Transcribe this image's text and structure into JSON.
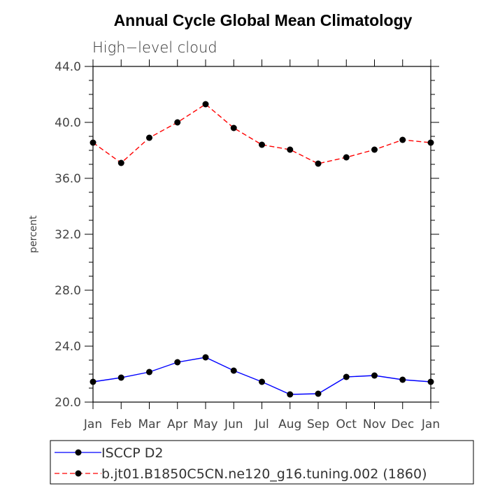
{
  "chart_data": {
    "type": "line",
    "title": "Annual Cycle Global Mean Climatology",
    "subtitle": "High−level cloud",
    "xlabel": "",
    "ylabel": "percent",
    "ylim": [
      20.0,
      44.0
    ],
    "yticks": [
      "20.0",
      "24.0",
      "28.0",
      "32.0",
      "36.0",
      "40.0",
      "44.0"
    ],
    "categories": [
      "Jan",
      "Feb",
      "Mar",
      "Apr",
      "May",
      "Jun",
      "Jul",
      "Aug",
      "Sep",
      "Oct",
      "Nov",
      "Dec",
      "Jan"
    ],
    "series": [
      {
        "name": "ISCCP D2",
        "color": "#0000ff",
        "dash": "solid",
        "values": [
          21.45,
          21.75,
          22.15,
          22.85,
          23.2,
          22.25,
          21.45,
          20.55,
          20.6,
          21.8,
          21.9,
          21.6,
          21.45
        ]
      },
      {
        "name": "b.jt01.B1850C5CN.ne120_g16.tuning.002 (1860)",
        "color": "#ff0000",
        "dash": "dashed",
        "values": [
          38.55,
          37.1,
          38.9,
          40.0,
          41.3,
          39.6,
          38.4,
          38.05,
          37.05,
          37.5,
          38.05,
          38.75,
          38.55
        ]
      }
    ]
  }
}
